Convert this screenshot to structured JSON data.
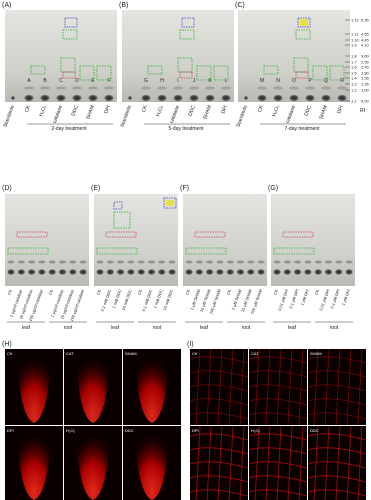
{
  "top": [
    {
      "label": "(A)",
      "lanes": [
        "Standards",
        "CK",
        "H₂O₂",
        "catalase",
        "DDC",
        "SHAM",
        "DPI"
      ],
      "letters": [
        "A",
        "B",
        "C",
        "D",
        "E",
        "F"
      ],
      "treatment": "2-day treatment"
    },
    {
      "label": "(B)",
      "lanes": [
        "Standards",
        "CK",
        "H₂O₂",
        "catalase",
        "DDC",
        "SHAM",
        "DPI"
      ],
      "letters": [
        "G",
        "H",
        "I",
        "J",
        "K",
        "L"
      ],
      "treatment": "5-day treatment"
    },
    {
      "label": "(C)",
      "lanes": [
        "Standards",
        "CK",
        "H₂O₂",
        "catalase",
        "DDC",
        "SHAM",
        "DPI"
      ],
      "letters": [
        "M",
        "N",
        "O",
        "P",
        "Q",
        "R"
      ],
      "treatment": "7-day treatment"
    }
  ],
  "rf": {
    "rows": [
      [
        "1.12",
        "5.35"
      ],
      [
        "1.11",
        "4.65"
      ],
      [
        "1.10",
        "4.45"
      ],
      [
        "1.9",
        "4.10"
      ],
      [
        "1.8",
        "3.60"
      ],
      [
        "1.7",
        "2.95"
      ],
      [
        "1.6",
        "2.45"
      ],
      [
        "1.5",
        "1.80"
      ],
      [
        "1.4",
        "1.55"
      ],
      [
        "1.3",
        "1.35"
      ],
      [
        "1.2",
        "1.00"
      ],
      [
        "1.1",
        "0.00"
      ]
    ],
    "label": "Rf"
  },
  "middle": [
    {
      "label": "(D)",
      "lanes": [
        "CK",
        "1 μg/ml catalase",
        "10 μg/ml catalase",
        "100 μg/ml catalase",
        "CK",
        "1 μg/ml catalase",
        "10 μg/ml catalase",
        "100 μg/ml catalase"
      ],
      "groups": [
        "leaf",
        "root"
      ]
    },
    {
      "label": "(E)",
      "lanes": [
        "CK",
        "0.1 mM DDC",
        "1 mM DDC",
        "10 mM DDC",
        "CK",
        "0.1 mM DDC",
        "1 mM DDC",
        "10 mM DDC"
      ],
      "groups": [
        "leaf",
        "root"
      ]
    },
    {
      "label": "(F)",
      "lanes": [
        "CK",
        "1 μM SHAM",
        "10 μM SHAM",
        "100 μM SHAM",
        "CK",
        "1 μM SHAM",
        "10 μM SHAM",
        "100 μM SHAM"
      ],
      "groups": [
        "leaf",
        "root"
      ]
    },
    {
      "label": "(G)",
      "lanes": [
        "CK",
        "0.01 μM DPI",
        "0.1 μM DPI",
        "1 μM DPI",
        "CK",
        "0.01 μM DPI",
        "0.1 μM DPI",
        "1 μM DPI"
      ],
      "groups": [
        "leaf",
        "root"
      ]
    }
  ],
  "bottom": [
    {
      "label": "(H)",
      "images": [
        "CK",
        "CAT",
        "SHAM",
        "DPI",
        "H₂O₂",
        "DDC"
      ]
    },
    {
      "label": "(I)",
      "images": [
        "CK",
        "CAT",
        "SHAM",
        "DPI",
        "H₂O₂",
        "DDC"
      ]
    }
  ]
}
